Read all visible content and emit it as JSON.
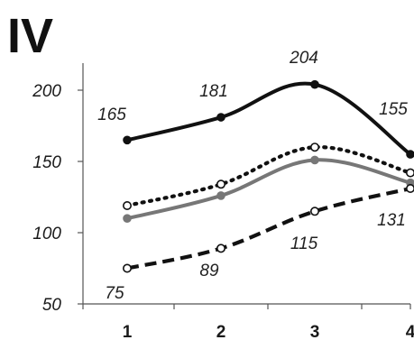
{
  "chart_data": {
    "type": "line",
    "title": "IV",
    "xlabel": "",
    "ylabel": "",
    "categories": [
      "1",
      "2",
      "3",
      "4"
    ],
    "ylim": [
      50,
      220
    ],
    "yticks": [
      "50",
      "100",
      "150",
      "200"
    ],
    "grid": false,
    "legend": "none",
    "series": [
      {
        "style": "solid-black",
        "color": "#111111",
        "marker": "filled-circle",
        "values": [
          165,
          181,
          204,
          155
        ],
        "labels": [
          "165",
          "181",
          "204",
          "155"
        ]
      },
      {
        "style": "dotted-black",
        "color": "#111111",
        "marker": "open-circle",
        "values": [
          119,
          134,
          160,
          142
        ],
        "labels": []
      },
      {
        "style": "solid-gray",
        "color": "#777777",
        "marker": "filled-circle",
        "values": [
          110,
          126,
          151,
          135
        ],
        "labels": []
      },
      {
        "style": "dashed-black",
        "color": "#111111",
        "marker": "open-circle",
        "values": [
          75,
          89,
          115,
          131
        ],
        "labels": [
          "75",
          "89",
          "115",
          "131"
        ]
      }
    ]
  }
}
